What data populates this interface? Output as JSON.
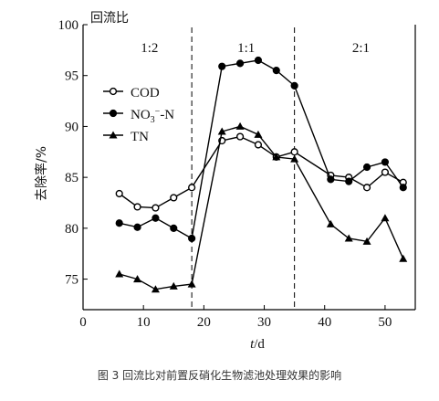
{
  "figure_caption": "图 3 回流比对前置反硝化生物滤池处理效果的影响",
  "chart_data": {
    "type": "line",
    "xlabel_italic": "t",
    "xlabel_unit": "/d",
    "ylabel": "去除率/%",
    "xlim": [
      0,
      55
    ],
    "ylim": [
      72,
      100
    ],
    "x_ticks": [
      0,
      10,
      20,
      30,
      40,
      50
    ],
    "y_ticks": [
      75,
      80,
      85,
      90,
      95,
      100
    ],
    "top_label": "回流比",
    "phase_dividers": [
      18,
      35
    ],
    "phases": [
      {
        "label": "1:2",
        "x_center": 11
      },
      {
        "label": "1:1",
        "x_center": 27
      },
      {
        "label": "2:1",
        "x_center": 46
      }
    ],
    "legend_position": "upper-left",
    "series": [
      {
        "name": "COD",
        "marker": "open-circle",
        "x": [
          6,
          9,
          12,
          15,
          18,
          23,
          26,
          29,
          32,
          35,
          41,
          44,
          47,
          50,
          53
        ],
        "y": [
          83.4,
          82.1,
          82.0,
          83.0,
          84.0,
          88.6,
          89.0,
          88.2,
          87.0,
          87.5,
          85.2,
          85.0,
          84.0,
          85.5,
          84.5
        ]
      },
      {
        "name": "NO3--N",
        "marker": "filled-circle",
        "x": [
          6,
          9,
          12,
          15,
          18,
          23,
          26,
          29,
          32,
          35,
          41,
          44,
          47,
          50,
          53
        ],
        "y": [
          80.5,
          80.1,
          81.0,
          80.0,
          79.0,
          95.9,
          96.2,
          96.5,
          95.5,
          94.0,
          84.8,
          84.6,
          86.0,
          86.5,
          84.0
        ]
      },
      {
        "name": "TN",
        "marker": "filled-triangle",
        "x": [
          6,
          9,
          12,
          15,
          18,
          23,
          26,
          29,
          32,
          35,
          41,
          44,
          47,
          50,
          53
        ],
        "y": [
          75.5,
          75.0,
          74.0,
          74.3,
          74.5,
          89.5,
          90.0,
          89.2,
          87.0,
          86.8,
          80.4,
          79.0,
          78.7,
          81.0,
          77.0
        ]
      }
    ]
  }
}
